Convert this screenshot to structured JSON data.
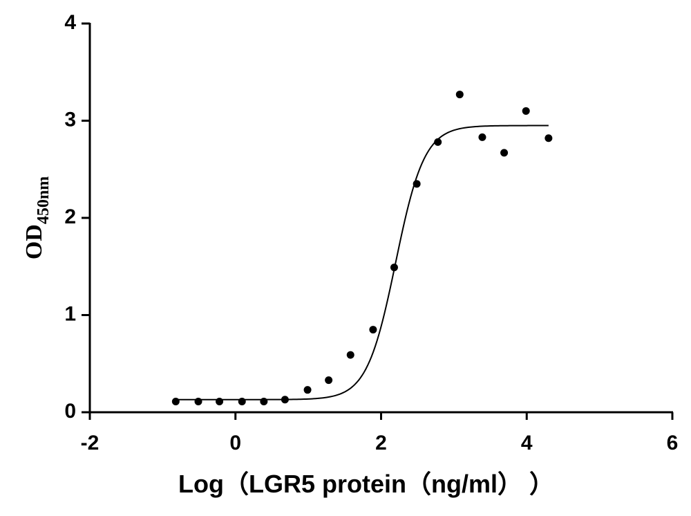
{
  "chart_data": {
    "type": "scatter",
    "x_label": "Log（LGR5 protein（ng/ml）  ）",
    "y_label": "OD",
    "y_label_subscript": "450nm",
    "x": [
      -0.82,
      -0.51,
      -0.22,
      0.09,
      0.39,
      0.68,
      0.99,
      1.28,
      1.58,
      1.89,
      2.18,
      2.49,
      2.78,
      3.08,
      3.39,
      3.69,
      3.99,
      4.3
    ],
    "values": [
      0.11,
      0.11,
      0.11,
      0.11,
      0.11,
      0.13,
      0.23,
      0.33,
      0.59,
      0.85,
      1.49,
      2.35,
      2.78,
      3.27,
      2.83,
      2.67,
      3.1,
      2.82
    ],
    "color": "#000000",
    "fit": {
      "bottom": 0.13,
      "top": 2.95,
      "log_ec50": 2.2,
      "hill": 2.2
    },
    "xlim": [
      -2,
      6
    ],
    "xticks": [
      -2,
      0,
      2,
      4,
      6
    ],
    "ylim": [
      0,
      4
    ],
    "yticks": [
      0,
      1,
      2,
      3,
      4
    ]
  }
}
